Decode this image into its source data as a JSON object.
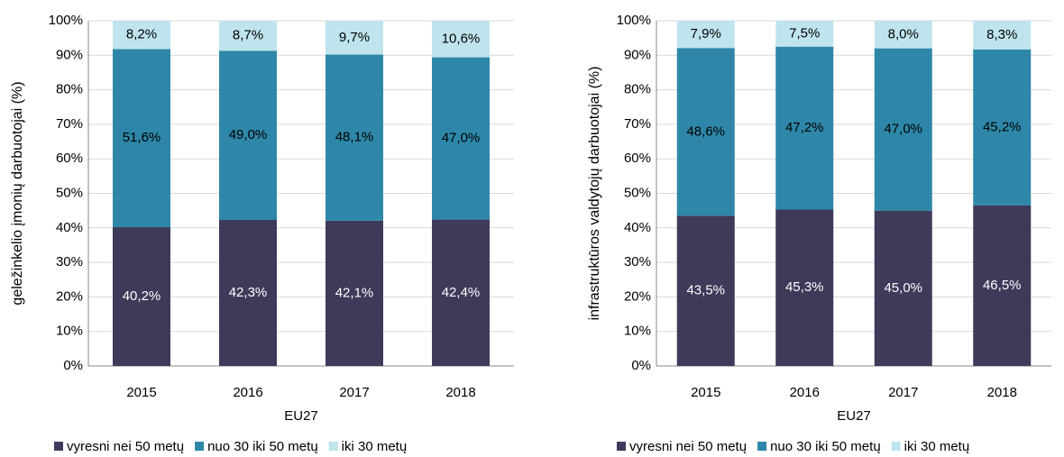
{
  "chart_data": [
    {
      "type": "stacked_bar",
      "ylabel": "geležinkelio įmonių darbuotojai (%)",
      "xlabel": "EU27",
      "categories": [
        "2015",
        "2016",
        "2017",
        "2018"
      ],
      "series": [
        {
          "name": "vyresni nei 50 metų",
          "color": "#3d3a5a",
          "values": [
            40.2,
            42.3,
            42.1,
            42.4
          ],
          "value_labels": [
            "40,2%",
            "42,3%",
            "42,1%",
            "42,4%"
          ]
        },
        {
          "name": "nuo 30 iki 50 metų",
          "color": "#2e87a8",
          "values": [
            51.6,
            49.0,
            48.1,
            47.0
          ],
          "value_labels": [
            "51,6%",
            "49,0%",
            "48,1%",
            "47,0%"
          ]
        },
        {
          "name": "iki 30 metų",
          "color": "#bfe4ee",
          "values": [
            8.2,
            8.7,
            9.7,
            10.6
          ],
          "value_labels": [
            "8,2%",
            "8,7%",
            "9,7%",
            "10,6%"
          ]
        }
      ],
      "ylim": [
        0,
        100
      ],
      "yticks": [
        {
          "value": 0,
          "label": "0%"
        },
        {
          "value": 10,
          "label": "10%"
        },
        {
          "value": 20,
          "label": "20%"
        },
        {
          "value": 30,
          "label": "30%"
        },
        {
          "value": 40,
          "label": "40%"
        },
        {
          "value": 50,
          "label": "50%"
        },
        {
          "value": 60,
          "label": "60%"
        },
        {
          "value": 70,
          "label": "70%"
        },
        {
          "value": 80,
          "label": "80%"
        },
        {
          "value": 90,
          "label": "90%"
        },
        {
          "value": 100,
          "label": "100%"
        }
      ],
      "grid": true,
      "legend": "bottom"
    },
    {
      "type": "stacked_bar",
      "ylabel": "infrastruktūros  valdytojų darbuotojai (%)",
      "xlabel": "EU27",
      "categories": [
        "2015",
        "2016",
        "2017",
        "2018"
      ],
      "series": [
        {
          "name": "vyresni nei 50 metų",
          "color": "#3d3a5a",
          "values": [
            43.5,
            45.3,
            45.0,
            46.5
          ],
          "value_labels": [
            "43,5%",
            "45,3%",
            "45,0%",
            "46,5%"
          ]
        },
        {
          "name": "nuo 30 iki 50 metų",
          "color": "#2e87a8",
          "values": [
            48.6,
            47.2,
            47.0,
            45.2
          ],
          "value_labels": [
            "48,6%",
            "47,2%",
            "47,0%",
            "45,2%"
          ]
        },
        {
          "name": "iki 30 metų",
          "color": "#bfe4ee",
          "values": [
            7.9,
            7.5,
            8.0,
            8.3
          ],
          "value_labels": [
            "7,9%",
            "7,5%",
            "8,0%",
            "8,3%"
          ]
        }
      ],
      "ylim": [
        0,
        100
      ],
      "yticks": [
        {
          "value": 0,
          "label": "0%"
        },
        {
          "value": 10,
          "label": "10%"
        },
        {
          "value": 20,
          "label": "20%"
        },
        {
          "value": 30,
          "label": "30%"
        },
        {
          "value": 40,
          "label": "40%"
        },
        {
          "value": 50,
          "label": "50%"
        },
        {
          "value": 60,
          "label": "60%"
        },
        {
          "value": 70,
          "label": "70%"
        },
        {
          "value": 80,
          "label": "80%"
        },
        {
          "value": 90,
          "label": "90%"
        },
        {
          "value": 100,
          "label": "100%"
        }
      ],
      "grid": true,
      "legend": "bottom"
    }
  ]
}
